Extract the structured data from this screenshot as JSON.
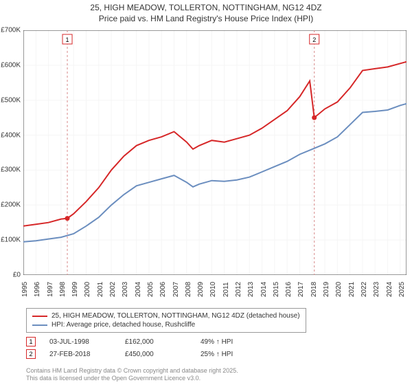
{
  "title": {
    "line1": "25, HIGH MEADOW, TOLLERTON, NOTTINGHAM, NG12 4DZ",
    "line2": "Price paid vs. HM Land Registry's House Price Index (HPI)",
    "fontsize": 12
  },
  "chart": {
    "type": "line",
    "background_color": "#ffffff",
    "grid_color": "#f5f5f5",
    "axis_color": "#333333",
    "xlim": [
      1995,
      2025.5
    ],
    "ylim": [
      0,
      700000
    ],
    "ytick_step": 100000,
    "ytick_labels": [
      "£0",
      "£100K",
      "£200K",
      "£300K",
      "£400K",
      "£500K",
      "£600K",
      "£700K"
    ],
    "xtick_step": 1,
    "xtick_labels": [
      "1995",
      "1996",
      "1997",
      "1998",
      "1999",
      "2000",
      "2001",
      "2002",
      "2003",
      "2004",
      "2005",
      "2006",
      "2007",
      "2008",
      "2009",
      "2010",
      "2011",
      "2012",
      "2013",
      "2014",
      "2015",
      "2016",
      "2017",
      "2018",
      "2019",
      "2020",
      "2021",
      "2022",
      "2023",
      "2024",
      "2025"
    ],
    "series": [
      {
        "name": "price_paid",
        "label": "25, HIGH MEADOW, TOLLERTON, NOTTINGHAM, NG12 4DZ (detached house)",
        "color": "#d62728",
        "line_width": 2,
        "x": [
          1995,
          1996,
          1997,
          1998,
          1998.5,
          1999,
          2000,
          2001,
          2002,
          2003,
          2004,
          2005,
          2006,
          2007,
          2008,
          2008.5,
          2009,
          2010,
          2011,
          2012,
          2013,
          2014,
          2015,
          2016,
          2017,
          2017.8,
          2018.16,
          2019,
          2020,
          2021,
          2022,
          2023,
          2024,
          2025,
          2025.5
        ],
        "y": [
          140000,
          145000,
          150000,
          160000,
          162000,
          175000,
          210000,
          250000,
          300000,
          340000,
          370000,
          385000,
          395000,
          410000,
          380000,
          360000,
          370000,
          385000,
          380000,
          390000,
          400000,
          420000,
          445000,
          470000,
          510000,
          555000,
          450000,
          475000,
          495000,
          535000,
          585000,
          590000,
          595000,
          605000,
          610000
        ]
      },
      {
        "name": "hpi",
        "label": "HPI: Average price, detached house, Rushcliffe",
        "color": "#6b8ebf",
        "line_width": 2,
        "x": [
          1995,
          1996,
          1997,
          1998,
          1999,
          2000,
          2001,
          2002,
          2003,
          2004,
          2005,
          2006,
          2007,
          2008,
          2008.5,
          2009,
          2010,
          2011,
          2012,
          2013,
          2014,
          2015,
          2016,
          2017,
          2018,
          2019,
          2020,
          2021,
          2022,
          2023,
          2024,
          2025,
          2025.5
        ],
        "y": [
          95000,
          98000,
          103000,
          108000,
          118000,
          140000,
          165000,
          200000,
          230000,
          255000,
          265000,
          275000,
          285000,
          265000,
          252000,
          260000,
          270000,
          268000,
          272000,
          280000,
          295000,
          310000,
          325000,
          345000,
          360000,
          375000,
          395000,
          430000,
          465000,
          468000,
          472000,
          485000,
          490000
        ]
      }
    ],
    "markers": [
      {
        "num": "1",
        "x": 1998.5,
        "date": "03-JUL-1998",
        "price": "£162,000",
        "delta": "49% ↑ HPI",
        "color": "#d62728",
        "dash_color": "#d68888"
      },
      {
        "num": "2",
        "x": 2018.16,
        "date": "27-FEB-2018",
        "price": "£450,000",
        "delta": "25% ↑ HPI",
        "color": "#d62728",
        "dash_color": "#d68888"
      }
    ]
  },
  "legend": {
    "border_color": "#999999",
    "fontsize": 10
  },
  "footer": {
    "line1": "Contains HM Land Registry data © Crown copyright and database right 2025.",
    "line2": "This data is licensed under the Open Government Licence v3.0.",
    "color": "#888888"
  }
}
